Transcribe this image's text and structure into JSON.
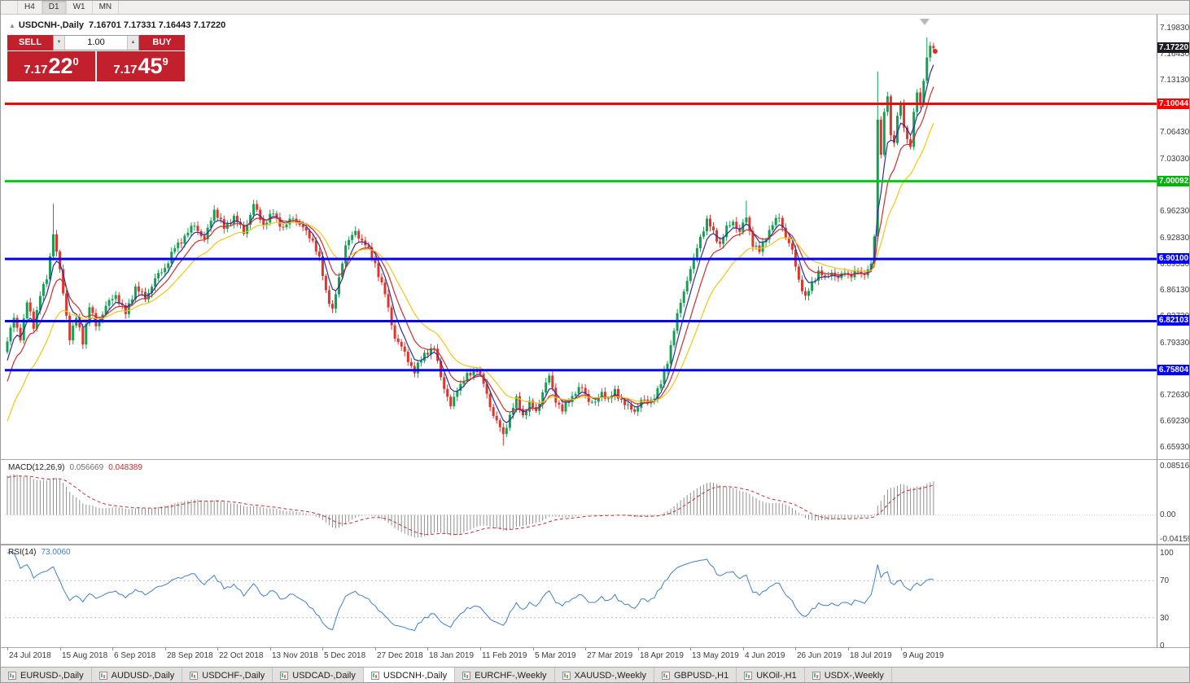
{
  "toolbar": {
    "timeframes": [
      {
        "label": "H4",
        "active": false
      },
      {
        "label": "D1",
        "active": true
      },
      {
        "label": "W1",
        "active": false
      },
      {
        "label": "MN",
        "active": false
      }
    ]
  },
  "icons": {
    "collapse": "▲",
    "volume_down": "▼",
    "volume_up": "▲"
  },
  "chart": {
    "symbol_title": "USDCNH-,Daily",
    "ohlc_text": "7.16701 7.17331 7.16443 7.17220"
  },
  "trade_widget": {
    "sell_label": "SELL",
    "buy_label": "BUY",
    "volume": "1.00",
    "sell_price_main": "7.17",
    "sell_price_big": "22",
    "sell_price_sup": "0",
    "buy_price_main": "7.17",
    "buy_price_big": "45",
    "buy_price_sup": "9"
  },
  "price_axis": {
    "grid_labels": [
      {
        "text": "7.19830",
        "value": 7.1983
      },
      {
        "text": "7.16430",
        "value": 7.1643
      },
      {
        "text": "7.13130",
        "value": 7.1313
      },
      {
        "text": "7.06430",
        "value": 7.0643
      },
      {
        "text": "7.03030",
        "value": 7.0303
      },
      {
        "text": "6.96230",
        "value": 6.9623
      },
      {
        "text": "6.92830",
        "value": 6.9283
      },
      {
        "text": "6.89530",
        "value": 6.8953
      },
      {
        "text": "6.86130",
        "value": 6.8613
      },
      {
        "text": "6.82730",
        "value": 6.8273
      },
      {
        "text": "6.79330",
        "value": 6.7933
      },
      {
        "text": "6.72630",
        "value": 6.7263
      },
      {
        "text": "6.69230",
        "value": 6.6923
      },
      {
        "text": "6.65930",
        "value": 6.6593
      }
    ],
    "price_tags": [
      {
        "text": "7.17220",
        "value": 7.1722,
        "bg": "#1c1c24",
        "kind": "current-price"
      },
      {
        "text": "7.10044",
        "value": 7.10044,
        "bg": "#ff0000",
        "kind": "line-level"
      },
      {
        "text": "7.00092",
        "value": 7.00092,
        "bg": "#00b40a",
        "kind": "line-level"
      },
      {
        "text": "6.90100",
        "value": 6.901,
        "bg": "#0000ff",
        "kind": "line-level"
      },
      {
        "text": "6.82103",
        "value": 6.82103,
        "bg": "#0000ff",
        "kind": "line-level"
      },
      {
        "text": "6.75804",
        "value": 6.75804,
        "bg": "#0000ff",
        "kind": "line-level"
      }
    ]
  },
  "hlines": [
    {
      "value": 7.10044,
      "color": "#ff0000",
      "width": 3
    },
    {
      "value": 7.00092,
      "color": "#00cb0c",
      "width": 3
    },
    {
      "value": 6.901,
      "color": "#0000ff",
      "width": 3
    },
    {
      "value": 6.82103,
      "color": "#0000ff",
      "width": 3
    },
    {
      "value": 6.75804,
      "color": "#0000ff",
      "width": 3
    }
  ],
  "indicators": {
    "macd": {
      "name": "MACD(12,26,9)",
      "value_main": "0.056669",
      "value_signal": "0.048389",
      "params": {
        "fast": 12,
        "slow": 26,
        "signal": 9
      },
      "axis_labels": [
        {
          "text": "0.085164",
          "value": 0.085164
        },
        {
          "text": "0.00",
          "value": 0
        },
        {
          "text": "-0.041597",
          "value": -0.041597
        }
      ],
      "range": [
        -0.041597,
        0.085164
      ],
      "histogram_color": "#8f8f8f",
      "signal_color": "#c03030"
    },
    "rsi": {
      "name": "RSI(14)",
      "value": "73.0060",
      "period": 14,
      "axis_labels": [
        {
          "text": "100",
          "value": 100
        },
        {
          "text": "70",
          "value": 70
        },
        {
          "text": "30",
          "value": 30
        },
        {
          "text": "0",
          "value": 0
        }
      ],
      "levels": [
        70,
        30
      ],
      "line_color": "#3f7fca"
    }
  },
  "x_axis": {
    "labels": [
      "24 Jul 2018",
      "15 Aug 2018",
      "6 Sep 2018",
      "28 Sep 2018",
      "22 Oct 2018",
      "13 Nov 2018",
      "5 Dec 2018",
      "27 Dec 2018",
      "18 Jan 2019",
      "11 Feb 2019",
      "5 Mar 2019",
      "27 Mar 2019",
      "18 Apr 2019",
      "13 May 2019",
      "4 Jun 2019",
      "26 Jun 2019",
      "18 Jul 2019",
      "9 Aug 2019"
    ],
    "bars_per_label": 16
  },
  "tabs": [
    {
      "label": "EURUSD-,Daily",
      "active": false
    },
    {
      "label": "AUDUSD-,Daily",
      "active": false
    },
    {
      "label": "USDCHF-,Daily",
      "active": false
    },
    {
      "label": "USDCAD-,Daily",
      "active": false
    },
    {
      "label": "USDCNH-,Daily",
      "active": true
    },
    {
      "label": "EURCHF-,Weekly",
      "active": false
    },
    {
      "label": "XAUUSD-,Weekly",
      "active": false
    },
    {
      "label": "GBPUSD-,H1",
      "active": false
    },
    {
      "label": "UKOil-,H1",
      "active": false
    },
    {
      "label": "USDX-,Weekly",
      "active": false
    }
  ],
  "chart_data": {
    "type": "candlestick",
    "symbol": "USDCNH",
    "timeframe": "Daily",
    "y_range": [
      6.6593,
      7.1983
    ],
    "x_range": [
      "24 Jul 2018",
      "Aug 2019"
    ],
    "current_bar": {
      "open": 7.16701,
      "high": 7.17331,
      "low": 7.16443,
      "close": 7.1722
    },
    "bid": 7.1722,
    "ask": 7.1745,
    "candle_count": 283,
    "up_color": "#14a053",
    "down_color": "#e0352b",
    "price_path_anchors": [
      [
        0,
        6.795
      ],
      [
        2,
        6.825
      ],
      [
        4,
        6.8
      ],
      [
        6,
        6.845
      ],
      [
        8,
        6.815
      ],
      [
        10,
        6.855
      ],
      [
        12,
        6.875
      ],
      [
        14,
        6.935
      ],
      [
        16,
        6.885
      ],
      [
        19,
        6.8
      ],
      [
        21,
        6.825
      ],
      [
        23,
        6.795
      ],
      [
        25,
        6.84
      ],
      [
        27,
        6.815
      ],
      [
        30,
        6.84
      ],
      [
        33,
        6.855
      ],
      [
        36,
        6.83
      ],
      [
        39,
        6.865
      ],
      [
        42,
        6.85
      ],
      [
        45,
        6.875
      ],
      [
        48,
        6.89
      ],
      [
        51,
        6.915
      ],
      [
        54,
        6.93
      ],
      [
        57,
        6.945
      ],
      [
        60,
        6.925
      ],
      [
        63,
        6.965
      ],
      [
        66,
        6.94
      ],
      [
        69,
        6.955
      ],
      [
        72,
        6.935
      ],
      [
        75,
        6.97
      ],
      [
        78,
        6.945
      ],
      [
        81,
        6.96
      ],
      [
        84,
        6.94
      ],
      [
        87,
        6.955
      ],
      [
        90,
        6.94
      ],
      [
        93,
        6.925
      ],
      [
        95,
        6.9
      ],
      [
        97,
        6.86
      ],
      [
        99,
        6.835
      ],
      [
        101,
        6.875
      ],
      [
        103,
        6.92
      ],
      [
        106,
        6.935
      ],
      [
        109,
        6.92
      ],
      [
        112,
        6.895
      ],
      [
        115,
        6.855
      ],
      [
        118,
        6.8
      ],
      [
        121,
        6.78
      ],
      [
        124,
        6.755
      ],
      [
        127,
        6.78
      ],
      [
        130,
        6.785
      ],
      [
        133,
        6.735
      ],
      [
        135,
        6.71
      ],
      [
        137,
        6.735
      ],
      [
        140,
        6.75
      ],
      [
        143,
        6.76
      ],
      [
        145,
        6.74
      ],
      [
        148,
        6.7
      ],
      [
        151,
        6.675
      ],
      [
        153,
        6.7
      ],
      [
        155,
        6.72
      ],
      [
        157,
        6.7
      ],
      [
        159,
        6.715
      ],
      [
        161,
        6.705
      ],
      [
        163,
        6.73
      ],
      [
        165,
        6.75
      ],
      [
        167,
        6.72
      ],
      [
        169,
        6.705
      ],
      [
        171,
        6.72
      ],
      [
        173,
        6.73
      ],
      [
        175,
        6.735
      ],
      [
        177,
        6.72
      ],
      [
        179,
        6.715
      ],
      [
        181,
        6.73
      ],
      [
        183,
        6.72
      ],
      [
        185,
        6.73
      ],
      [
        187,
        6.72
      ],
      [
        189,
        6.71
      ],
      [
        191,
        6.705
      ],
      [
        193,
        6.72
      ],
      [
        195,
        6.715
      ],
      [
        197,
        6.725
      ],
      [
        199,
        6.74
      ],
      [
        201,
        6.77
      ],
      [
        203,
        6.81
      ],
      [
        205,
        6.845
      ],
      [
        207,
        6.875
      ],
      [
        209,
        6.9
      ],
      [
        211,
        6.93
      ],
      [
        213,
        6.95
      ],
      [
        215,
        6.935
      ],
      [
        217,
        6.92
      ],
      [
        219,
        6.94
      ],
      [
        221,
        6.95
      ],
      [
        223,
        6.935
      ],
      [
        225,
        6.955
      ],
      [
        227,
        6.92
      ],
      [
        229,
        6.91
      ],
      [
        231,
        6.93
      ],
      [
        233,
        6.945
      ],
      [
        235,
        6.955
      ],
      [
        237,
        6.93
      ],
      [
        239,
        6.91
      ],
      [
        241,
        6.875
      ],
      [
        243,
        6.85
      ],
      [
        245,
        6.87
      ],
      [
        247,
        6.885
      ],
      [
        249,
        6.875
      ],
      [
        251,
        6.885
      ],
      [
        253,
        6.875
      ],
      [
        255,
        6.885
      ],
      [
        257,
        6.88
      ],
      [
        259,
        6.885
      ],
      [
        261,
        6.88
      ],
      [
        263,
        6.895
      ],
      [
        264,
        6.93
      ],
      [
        265,
        7.08
      ],
      [
        266,
        7.035
      ],
      [
        267,
        7.09
      ],
      [
        268,
        7.11
      ],
      [
        269,
        7.06
      ],
      [
        270,
        7.05
      ],
      [
        271,
        7.085
      ],
      [
        272,
        7.1
      ],
      [
        273,
        7.07
      ],
      [
        274,
        7.055
      ],
      [
        275,
        7.045
      ],
      [
        276,
        7.09
      ],
      [
        277,
        7.115
      ],
      [
        278,
        7.1
      ],
      [
        279,
        7.13
      ],
      [
        280,
        7.16
      ],
      [
        281,
        7.175
      ],
      [
        282,
        7.172
      ]
    ],
    "wick_overrides": {
      "14": {
        "h": 6.972
      },
      "151": {
        "l": 6.661
      },
      "225": {
        "h": 6.976
      },
      "265": {
        "h": 7.142
      },
      "280": {
        "h": 7.186
      }
    },
    "prehistory": {
      "bars": 40,
      "start": 6.37,
      "step": 0.0105
    },
    "moving_averages": [
      {
        "type": "EMA",
        "period": 5,
        "color": "#2a2f9e"
      },
      {
        "type": "EMA",
        "period": 10,
        "color": "#cf2e2e"
      },
      {
        "type": "EMA",
        "period": 20,
        "color": "#f3c612"
      }
    ]
  }
}
